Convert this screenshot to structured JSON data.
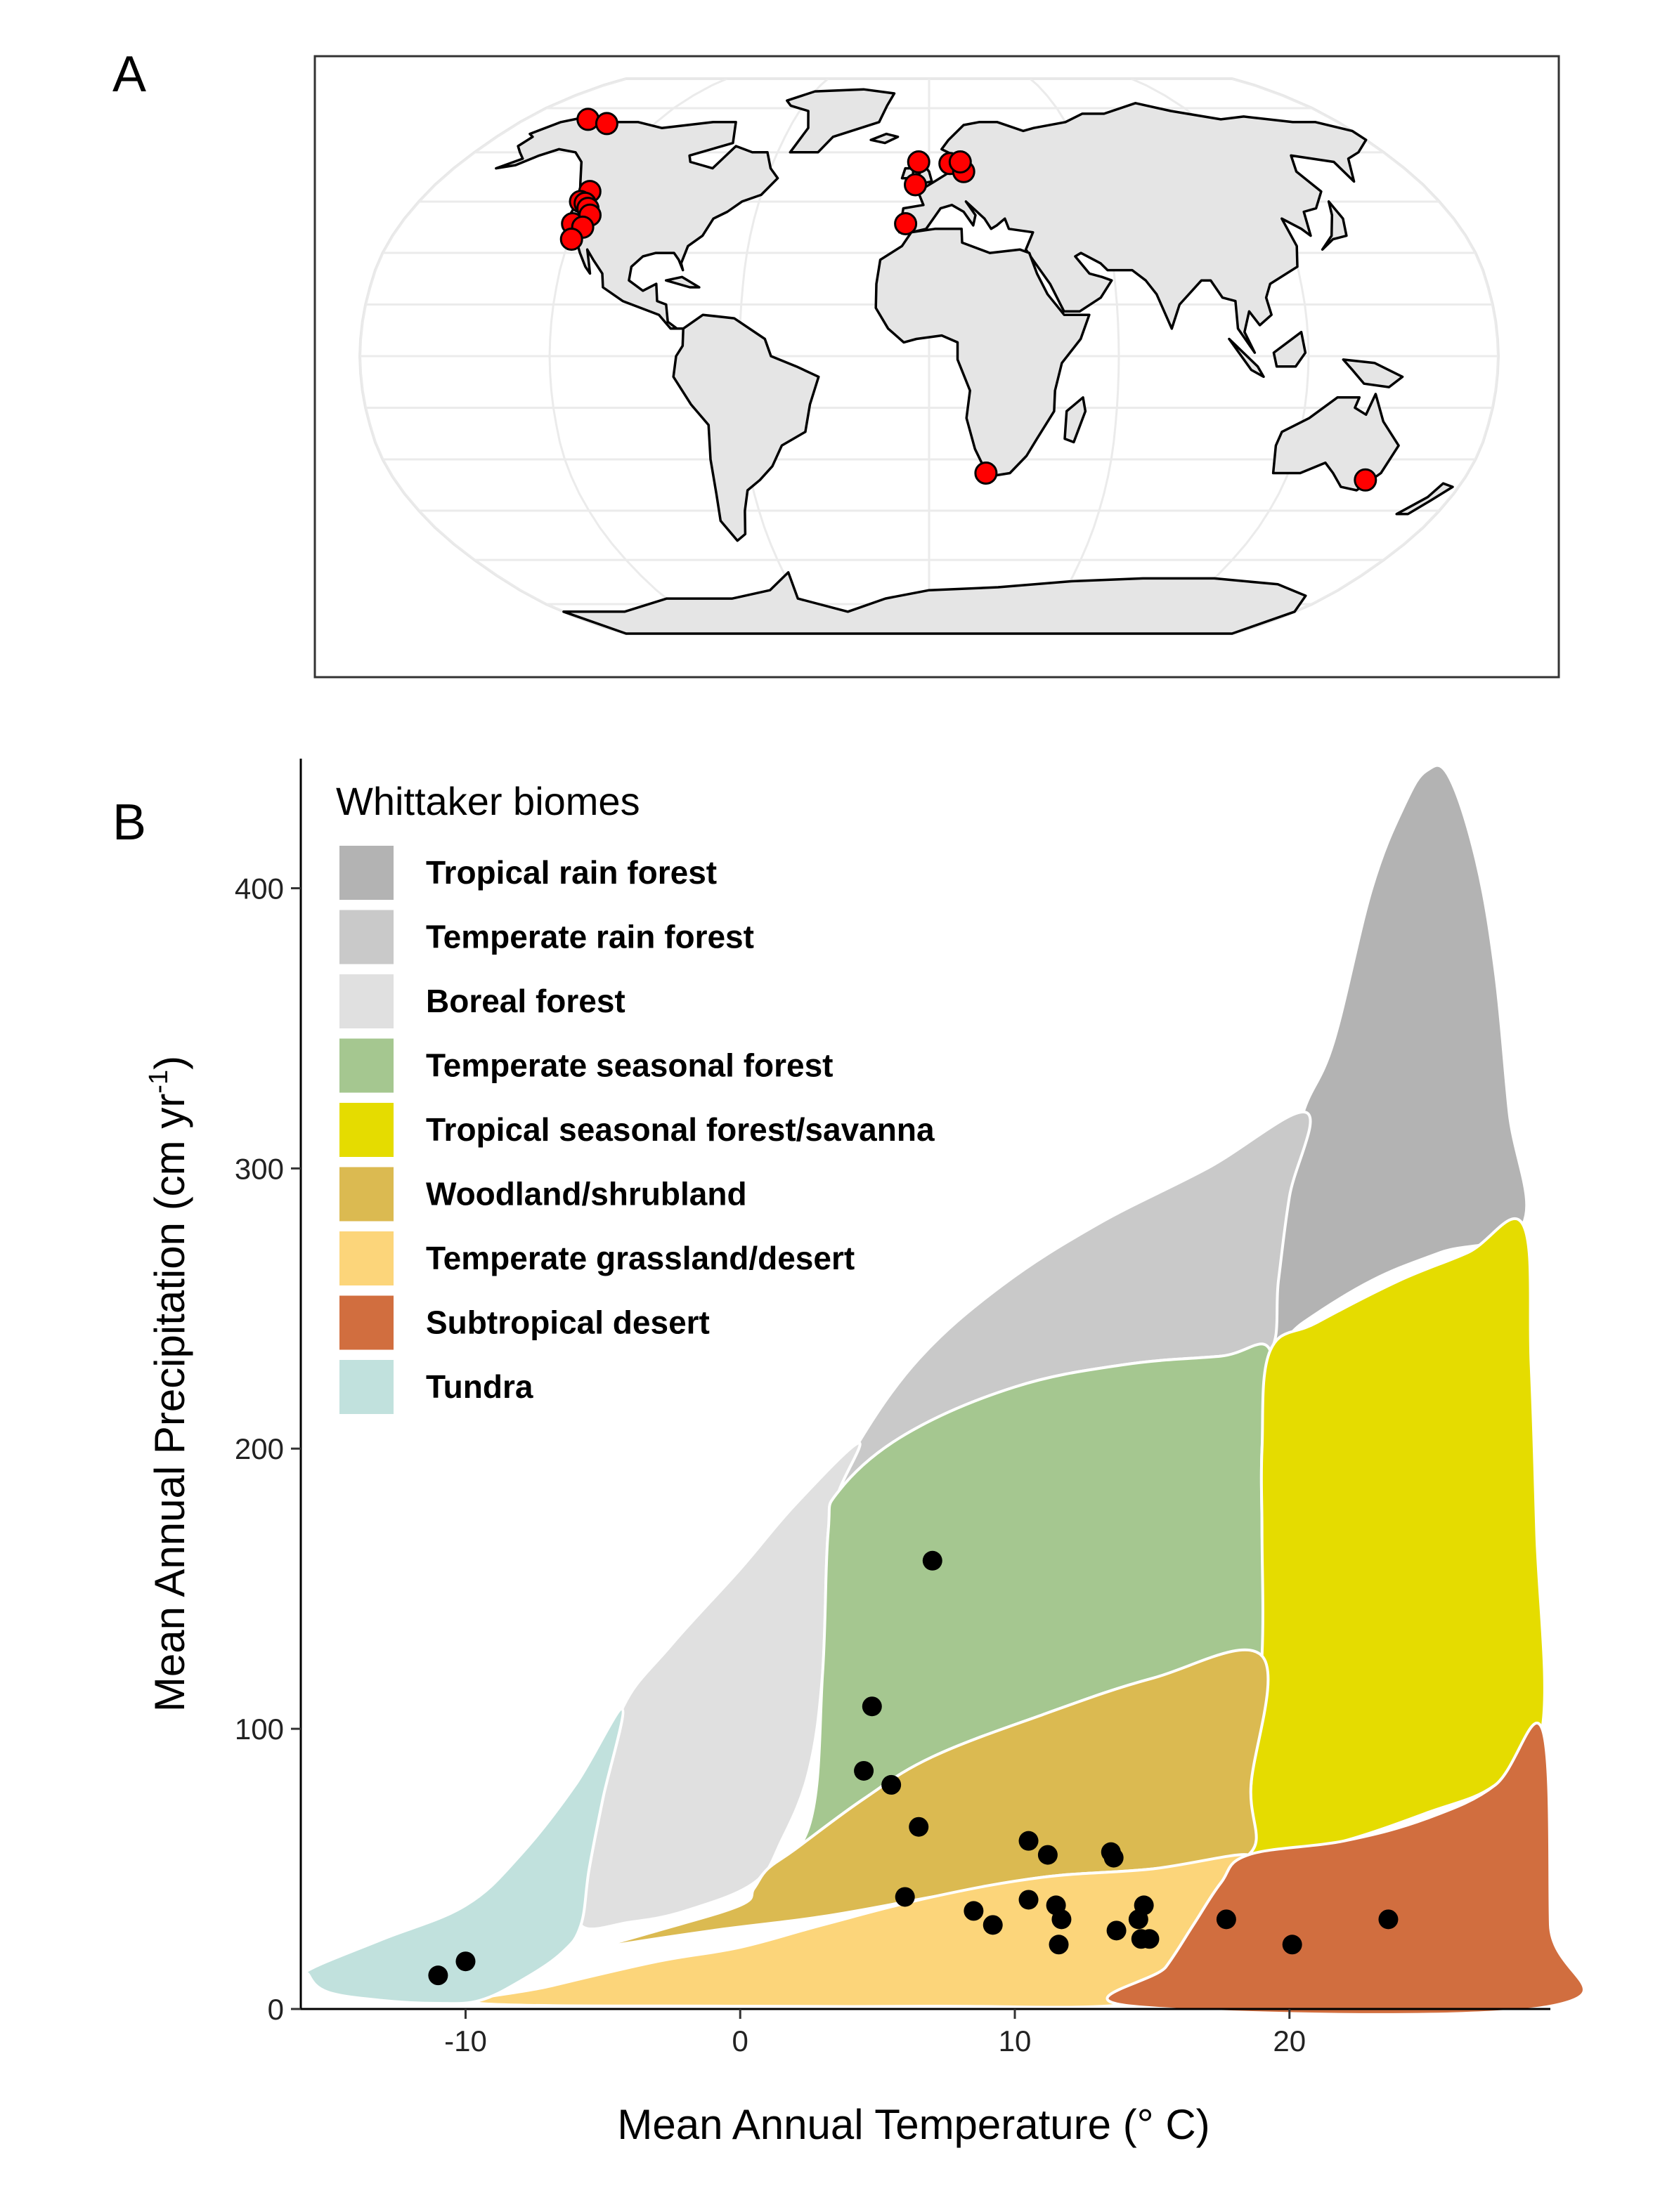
{
  "panels": {
    "a_label": "A",
    "b_label": "B"
  },
  "map": {
    "land_color": "#e5e5e5",
    "coast_color": "#000000",
    "marker_fill": "#ff0000",
    "marker_stroke": "#000000",
    "site_coords": [
      [
        -152,
        71
      ],
      [
        -141,
        69.5
      ],
      [
        -122,
        48
      ],
      [
        -123,
        45
      ],
      [
        -121,
        44.5
      ],
      [
        -119,
        43
      ],
      [
        -117,
        41
      ],
      [
        -121.5,
        38.5
      ],
      [
        -117.5,
        37.5
      ],
      [
        -119.5,
        34
      ],
      [
        -4,
        57
      ],
      [
        -5,
        50
      ],
      [
        8,
        56.5
      ],
      [
        13,
        54
      ],
      [
        12,
        57
      ],
      [
        -8,
        38.5
      ],
      [
        19,
        -34
      ],
      [
        147,
        -36
      ]
    ]
  },
  "chart_data": {
    "type": "scatter",
    "xlabel": "Mean Annual Temperature (° C)",
    "ylabel_main": "Mean Annual Precipitation (cm yr",
    "ylabel_sup": "-1",
    "ylabel_close": ")",
    "xlim": [
      -16,
      29.5
    ],
    "ylim": [
      0,
      445
    ],
    "x_ticks": [
      -10,
      0,
      10,
      20
    ],
    "y_ticks": [
      0,
      100,
      200,
      300,
      400
    ],
    "legend": {
      "title": "Whittaker biomes",
      "placement": "top-left",
      "items": [
        {
          "label": "Tropical rain forest",
          "color": "#b3b3b3"
        },
        {
          "label": "Temperate rain forest",
          "color": "#c9c9c9"
        },
        {
          "label": "Boreal forest",
          "color": "#e0e0e0"
        },
        {
          "label": "Temperate seasonal forest",
          "color": "#a5c790"
        },
        {
          "label": "Tropical seasonal forest/savanna",
          "color": "#e5dc00"
        },
        {
          "label": "Woodland/shrubland",
          "color": "#dbba51"
        },
        {
          "label": "Temperate grassland/desert",
          "color": "#fcd57a"
        },
        {
          "label": "Subtropical desert",
          "color": "#d16e3f"
        },
        {
          "label": "Tundra",
          "color": "#c1e1dd"
        }
      ]
    },
    "biomes": [
      {
        "name": "Tropical rain forest",
        "color": "#b3b3b3",
        "points": [
          [
            19.3,
            235
          ],
          [
            20.5,
            245
          ],
          [
            23,
            260
          ],
          [
            25.5,
            270
          ],
          [
            28.5,
            280
          ],
          [
            28,
            320
          ],
          [
            27.5,
            370
          ],
          [
            26.8,
            410
          ],
          [
            25.8,
            440
          ],
          [
            25,
            442
          ],
          [
            24.2,
            430
          ],
          [
            23,
            400
          ],
          [
            21.6,
            345
          ],
          [
            20.5,
            320
          ],
          [
            19.8,
            290
          ],
          [
            19.5,
            260
          ]
        ]
      },
      {
        "name": "Temperate rain forest",
        "color": "#c9c9c9",
        "points": [
          [
            3.6,
            185
          ],
          [
            6,
            205
          ],
          [
            10,
            222
          ],
          [
            14,
            230
          ],
          [
            17.5,
            233
          ],
          [
            19.3,
            235
          ],
          [
            19.6,
            260
          ],
          [
            20,
            290
          ],
          [
            20.6,
            320
          ],
          [
            17,
            300
          ],
          [
            13,
            280
          ],
          [
            9.5,
            258
          ],
          [
            6.5,
            232
          ],
          [
            4.3,
            202
          ]
        ]
      },
      {
        "name": "Boreal forest",
        "color": "#e0e0e0",
        "points": [
          [
            -5.8,
            30
          ],
          [
            -5.5,
            50
          ],
          [
            -5,
            75
          ],
          [
            -4.3,
            107
          ],
          [
            -2.5,
            130
          ],
          [
            0,
            157
          ],
          [
            2,
            180
          ],
          [
            4.3,
            202
          ],
          [
            3.6,
            185
          ],
          [
            3.2,
            170
          ],
          [
            3,
            120
          ],
          [
            2.5,
            85
          ],
          [
            1.5,
            60
          ],
          [
            0.5,
            45
          ],
          [
            -2,
            35
          ],
          [
            -4,
            31
          ]
        ]
      },
      {
        "name": "Temperate seasonal forest",
        "color": "#a5c790",
        "points": [
          [
            0.5,
            43
          ],
          [
            2.5,
            65
          ],
          [
            3,
            120
          ],
          [
            3.2,
            170
          ],
          [
            3.6,
            185
          ],
          [
            6,
            205
          ],
          [
            10,
            222
          ],
          [
            14,
            230
          ],
          [
            17.5,
            233
          ],
          [
            19.3,
            235
          ],
          [
            19,
            200
          ],
          [
            19,
            170
          ],
          [
            19,
            126
          ],
          [
            15,
            118
          ],
          [
            11,
            105
          ],
          [
            7,
            90
          ],
          [
            4.5,
            75
          ],
          [
            2,
            57
          ],
          [
            1,
            50
          ]
        ]
      },
      {
        "name": "Tropical seasonal forest/savanna",
        "color": "#e5dc00",
        "points": [
          [
            19.3,
            235
          ],
          [
            21,
            245
          ],
          [
            24,
            260
          ],
          [
            26.5,
            270
          ],
          [
            28.5,
            280
          ],
          [
            28.8,
            230
          ],
          [
            29,
            170
          ],
          [
            29.2,
            100
          ],
          [
            27.5,
            80
          ],
          [
            25,
            70
          ],
          [
            22,
            60
          ],
          [
            19.5,
            55
          ],
          [
            18.5,
            55
          ],
          [
            18.6,
            80
          ],
          [
            19,
            126
          ],
          [
            19,
            170
          ],
          [
            19,
            200
          ]
        ]
      },
      {
        "name": "Woodland/shrubland",
        "color": "#dbba51",
        "points": [
          [
            -9,
            14
          ],
          [
            -6,
            20
          ],
          [
            -3,
            28
          ],
          [
            0,
            37
          ],
          [
            0.5,
            43
          ],
          [
            1,
            50
          ],
          [
            2,
            57
          ],
          [
            4.5,
            75
          ],
          [
            7,
            90
          ],
          [
            11,
            105
          ],
          [
            15,
            118
          ],
          [
            19,
            126
          ],
          [
            18.6,
            80
          ],
          [
            18.5,
            55
          ],
          [
            15,
            50
          ],
          [
            11,
            47
          ],
          [
            7,
            40
          ],
          [
            3,
            33
          ],
          [
            -1,
            28
          ],
          [
            -5,
            22
          ],
          [
            -8.5,
            15
          ]
        ]
      },
      {
        "name": "Temperate grassland/desert",
        "color": "#fcd57a",
        "points": [
          [
            -9.5,
            2
          ],
          [
            -7,
            8
          ],
          [
            -3,
            17
          ],
          [
            0,
            22
          ],
          [
            3,
            30
          ],
          [
            7,
            40
          ],
          [
            11,
            47
          ],
          [
            15,
            50
          ],
          [
            18.5,
            55
          ],
          [
            17.5,
            45
          ],
          [
            16.5,
            30
          ],
          [
            15.5,
            15
          ],
          [
            14.3,
            2
          ],
          [
            7,
            1
          ],
          [
            0,
            1
          ]
        ]
      },
      {
        "name": "Subtropical desert",
        "color": "#d16e3f",
        "points": [
          [
            14.3,
            1
          ],
          [
            15.5,
            15
          ],
          [
            16.5,
            30
          ],
          [
            17.5,
            45
          ],
          [
            18.5,
            55
          ],
          [
            22,
            60
          ],
          [
            25,
            68
          ],
          [
            27.5,
            80
          ],
          [
            29.2,
            100
          ],
          [
            29.5,
            30
          ],
          [
            29.5,
            1
          ]
        ]
      },
      {
        "name": "Tundra",
        "color": "#c1e1dd",
        "points": [
          [
            -15.7,
            12
          ],
          [
            -15.5,
            15
          ],
          [
            -13,
            25
          ],
          [
            -10,
            37
          ],
          [
            -8,
            55
          ],
          [
            -6,
            80
          ],
          [
            -4.3,
            107
          ],
          [
            -5,
            75
          ],
          [
            -5.5,
            50
          ],
          [
            -5.8,
            30
          ],
          [
            -6.5,
            20
          ],
          [
            -8,
            10
          ],
          [
            -9.5,
            3
          ],
          [
            -11,
            2
          ],
          [
            -13,
            3
          ],
          [
            -15,
            6
          ]
        ]
      }
    ],
    "points": [
      {
        "x": -11,
        "y": 12
      },
      {
        "x": -10,
        "y": 17
      },
      {
        "x": 4.5,
        "y": 85
      },
      {
        "x": 4.8,
        "y": 108
      },
      {
        "x": 5.5,
        "y": 80
      },
      {
        "x": 6,
        "y": 40
      },
      {
        "x": 6.5,
        "y": 65
      },
      {
        "x": 7,
        "y": 160
      },
      {
        "x": 8.5,
        "y": 35
      },
      {
        "x": 9.2,
        "y": 30
      },
      {
        "x": 10.5,
        "y": 60
      },
      {
        "x": 10.5,
        "y": 39
      },
      {
        "x": 11.2,
        "y": 55
      },
      {
        "x": 11.5,
        "y": 37
      },
      {
        "x": 11.7,
        "y": 32
      },
      {
        "x": 11.6,
        "y": 23
      },
      {
        "x": 13.5,
        "y": 56
      },
      {
        "x": 13.6,
        "y": 54
      },
      {
        "x": 13.7,
        "y": 28
      },
      {
        "x": 14.5,
        "y": 32
      },
      {
        "x": 14.7,
        "y": 37
      },
      {
        "x": 14.6,
        "y": 25
      },
      {
        "x": 14.9,
        "y": 25
      },
      {
        "x": 17.7,
        "y": 32
      },
      {
        "x": 20.1,
        "y": 23
      },
      {
        "x": 23.6,
        "y": 32
      }
    ]
  }
}
